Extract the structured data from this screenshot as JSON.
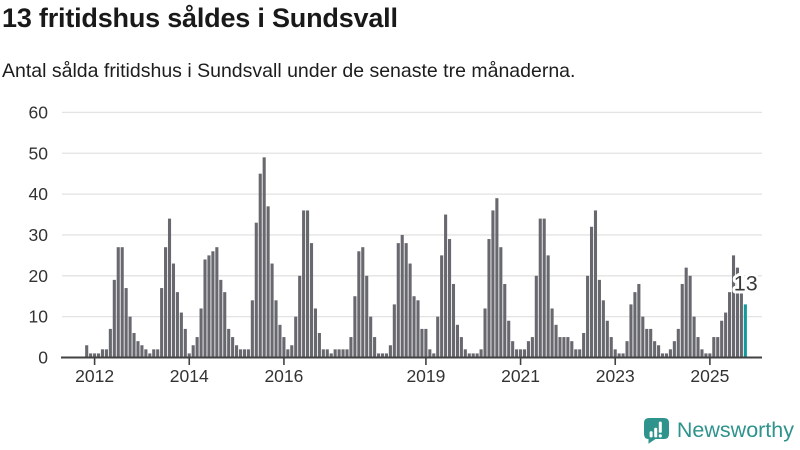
{
  "header": {
    "title": "13 fritidshus såldes i Sundsvall",
    "subtitle": "Antal sålda fritidshus i Sundsvall under de senaste tre månaderna."
  },
  "annotation": {
    "last_value_label": "13"
  },
  "branding": {
    "wordmark": "Newsworthy"
  },
  "colors": {
    "bar": "#68686F",
    "highlight": "#12999B",
    "grid": "#E3E3E3",
    "axis": "#424242",
    "label": "#333333",
    "annotation_text": "#3A3A3A",
    "brand": "#2E938C",
    "title": "#191919"
  },
  "chart_data": {
    "type": "bar",
    "title": "13 fritidshus såldes i Sundsvall",
    "subtitle": "Antal sålda fritidshus i Sundsvall under de senaste tre månaderna.",
    "xlabel": "",
    "ylabel": "",
    "ylim": [
      0,
      60
    ],
    "y_ticks": [
      0,
      10,
      20,
      30,
      40,
      50,
      60
    ],
    "x_tick_labels": [
      "2012",
      "2014",
      "2016",
      "2019",
      "2021",
      "2023",
      "2025"
    ],
    "grid": true,
    "legend": false,
    "highlight_last": true,
    "first_year_start_month": 11,
    "months": [
      {
        "year": 2011,
        "values": [
          3,
          1
        ]
      },
      {
        "year": 2012,
        "values": [
          1,
          1,
          2,
          2,
          7,
          19,
          27,
          27,
          17,
          10,
          6,
          4
        ]
      },
      {
        "year": 2013,
        "values": [
          3,
          2,
          1,
          2,
          2,
          17,
          27,
          34,
          23,
          16,
          11,
          7
        ]
      },
      {
        "year": 2014,
        "values": [
          1,
          3,
          5,
          12,
          24,
          25,
          26,
          27,
          19,
          16,
          7,
          5
        ]
      },
      {
        "year": 2015,
        "values": [
          3,
          2,
          2,
          2,
          14,
          33,
          45,
          49,
          37,
          23,
          14,
          8
        ]
      },
      {
        "year": 2016,
        "values": [
          5,
          2,
          3,
          10,
          20,
          36,
          36,
          28,
          12,
          6,
          2,
          2
        ]
      },
      {
        "year": 2017,
        "values": [
          1,
          2,
          2,
          2,
          2,
          5,
          15,
          26,
          27,
          20,
          10,
          5
        ]
      },
      {
        "year": 2018,
        "values": [
          1,
          1,
          1,
          3,
          13,
          28,
          30,
          28,
          23,
          15,
          14,
          7
        ]
      },
      {
        "year": 2019,
        "values": [
          7,
          2,
          1,
          10,
          25,
          35,
          29,
          18,
          8,
          5,
          2,
          1
        ]
      },
      {
        "year": 2020,
        "values": [
          1,
          1,
          2,
          12,
          29,
          36,
          39,
          27,
          18,
          9,
          4,
          2
        ]
      },
      {
        "year": 2021,
        "values": [
          2,
          2,
          4,
          5,
          20,
          34,
          34,
          25,
          12,
          8,
          5,
          5
        ]
      },
      {
        "year": 2022,
        "values": [
          5,
          4,
          2,
          2,
          6,
          20,
          32,
          36,
          19,
          14,
          9,
          5
        ]
      },
      {
        "year": 2023,
        "values": [
          2,
          1,
          1,
          4,
          13,
          16,
          18,
          10,
          7,
          7,
          4,
          3
        ]
      },
      {
        "year": 2024,
        "values": [
          1,
          1,
          2,
          4,
          7,
          18,
          22,
          20,
          10,
          5,
          2,
          1
        ]
      },
      {
        "year": 2025,
        "values": [
          1,
          5,
          5,
          9,
          11,
          16,
          25,
          22,
          19,
          13
        ]
      }
    ]
  }
}
